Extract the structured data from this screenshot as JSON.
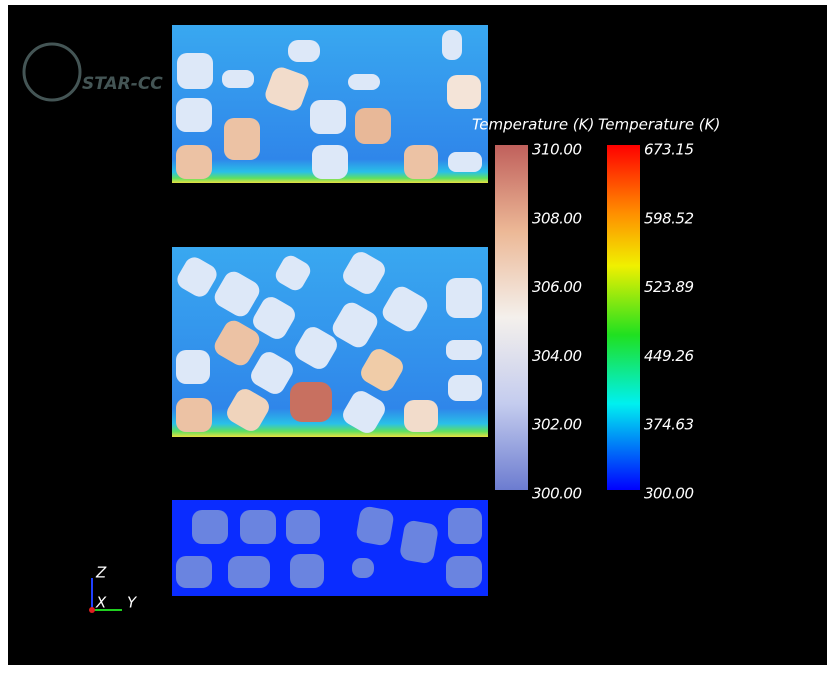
{
  "logo": "STAR-CC",
  "legends": [
    {
      "title": "Temperature (K)",
      "labels": [
        "310.00",
        "308.00",
        "306.00",
        "304.00",
        "302.00",
        "300.00"
      ]
    },
    {
      "title": "Temperature (K)",
      "labels": [
        "673.15",
        "598.52",
        "523.89",
        "449.26",
        "374.63",
        "300.00"
      ]
    }
  ],
  "triad": {
    "z": "Z",
    "x": "X",
    "y": "Y"
  }
}
